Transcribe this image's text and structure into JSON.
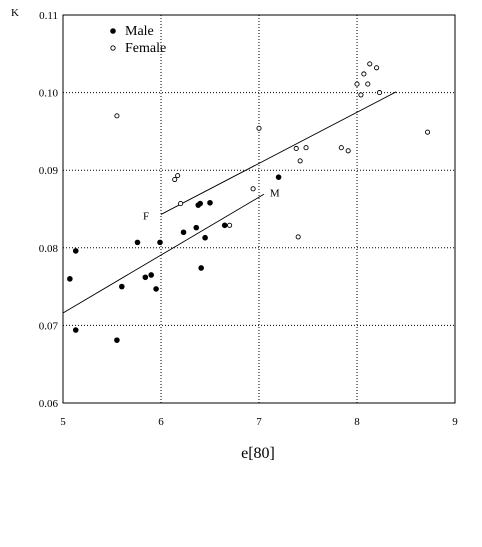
{
  "chart_data": {
    "type": "scatter",
    "xlabel": "e[80]",
    "ylabel": "K",
    "xlim": [
      5,
      9
    ],
    "ylim": [
      0.06,
      0.11
    ],
    "xticks": [
      "5",
      "6",
      "7",
      "8",
      "9"
    ],
    "yticks": [
      "0.06",
      "0.07",
      "0.08",
      "0.09",
      "0.10",
      "0.11"
    ],
    "grid": "dotted at x = 6, 7, 8 and y = 0.07, 0.08, 0.09, 0.10",
    "legend": {
      "position": "top-left",
      "entries": [
        {
          "label": "Male",
          "marker": "filled-dot"
        },
        {
          "label": "Female",
          "marker": "open-circle"
        }
      ]
    },
    "series": [
      {
        "name": "Male",
        "marker": "filled-dot",
        "points": [
          [
            5.07,
            0.076
          ],
          [
            5.13,
            0.0796
          ],
          [
            5.13,
            0.0694
          ],
          [
            5.55,
            0.0681
          ],
          [
            5.6,
            0.075
          ],
          [
            5.76,
            0.0807
          ],
          [
            5.84,
            0.0762
          ],
          [
            5.9,
            0.0765
          ],
          [
            5.95,
            0.0747
          ],
          [
            5.99,
            0.0807
          ],
          [
            6.23,
            0.082
          ],
          [
            6.36,
            0.0826
          ],
          [
            6.38,
            0.0855
          ],
          [
            6.4,
            0.0857
          ],
          [
            6.41,
            0.0774
          ],
          [
            6.45,
            0.0813
          ],
          [
            6.5,
            0.0858
          ],
          [
            6.65,
            0.0829
          ],
          [
            7.2,
            0.0891
          ]
        ]
      },
      {
        "name": "Female",
        "marker": "open-circle",
        "points": [
          [
            5.55,
            0.097
          ],
          [
            6.14,
            0.0888
          ],
          [
            6.17,
            0.0893
          ],
          [
            6.2,
            0.0857
          ],
          [
            6.7,
            0.0829
          ],
          [
            6.94,
            0.0876
          ],
          [
            7.0,
            0.0954
          ],
          [
            7.38,
            0.0928
          ],
          [
            7.4,
            0.0814
          ],
          [
            7.42,
            0.0912
          ],
          [
            7.48,
            0.0929
          ],
          [
            7.84,
            0.0929
          ],
          [
            7.91,
            0.0925
          ],
          [
            8.0,
            0.1011
          ],
          [
            8.04,
            0.0997
          ],
          [
            8.07,
            0.1024
          ],
          [
            8.11,
            0.1011
          ],
          [
            8.13,
            0.1037
          ],
          [
            8.2,
            0.1032
          ],
          [
            8.23,
            0.1
          ],
          [
            8.72,
            0.0949
          ]
        ]
      }
    ],
    "regression_lines": [
      {
        "label": "F",
        "from": [
          6.0,
          0.0843
        ],
        "to": [
          8.4,
          0.1001
        ]
      },
      {
        "label": "M",
        "from": [
          5.0,
          0.0716
        ],
        "to": [
          7.05,
          0.0869
        ]
      }
    ]
  }
}
